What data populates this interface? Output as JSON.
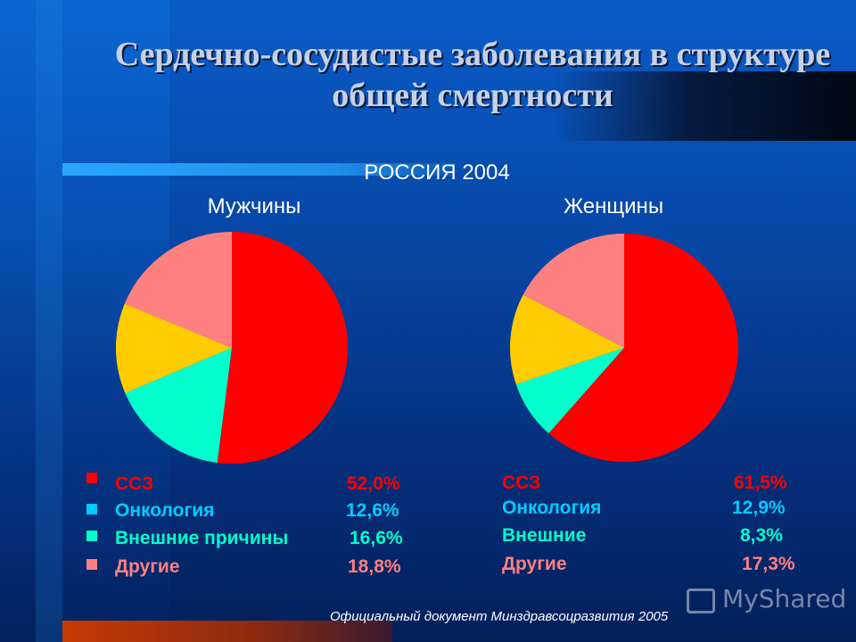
{
  "title": "Сердечно-сосудистые заболевания в структуре общей смертности",
  "subtitle": "РОССИЯ 2004",
  "footnote": "Официальный документ Минздравсоцразвития 2005",
  "watermark": "MyShared",
  "colors": {
    "ssz": "#ff0000",
    "oncology": "#00d0ff",
    "external": "#00ffcc",
    "other": "#ff8080",
    "male_external_slice": "#00ffcc",
    "male_oncology_slice": "#ffcc00",
    "female_oncology_slice": "#ffcc00"
  },
  "chart_data": [
    {
      "type": "pie",
      "title": "Мужчины",
      "categories": [
        "ССЗ",
        "Внешние причины",
        "Онкология",
        "Другие"
      ],
      "values": [
        52.0,
        16.6,
        12.6,
        18.8
      ],
      "colors": [
        "#ff0000",
        "#00ffcc",
        "#ffcc00",
        "#ff8080"
      ],
      "legend": [
        {
          "label": "ССЗ",
          "value": "52,0%",
          "color": "#ff0000"
        },
        {
          "label": "Онкология",
          "value": "12,6%",
          "color": "#00ccff"
        },
        {
          "label": "Внешние причины",
          "value": "16,6%",
          "color": "#00ffcc"
        },
        {
          "label": "Другие",
          "value": "18,8%",
          "color": "#ff8080"
        }
      ]
    },
    {
      "type": "pie",
      "title": "Женщины",
      "categories": [
        "ССЗ",
        "Внешние",
        "Онкология",
        "Другие"
      ],
      "values": [
        61.5,
        8.3,
        12.9,
        17.3
      ],
      "colors": [
        "#ff0000",
        "#00ffcc",
        "#ffcc00",
        "#ff8080"
      ],
      "legend": [
        {
          "label": "ССЗ",
          "value": "61,5%",
          "color": "#ff0000"
        },
        {
          "label": "Онкология",
          "value": "12,9%",
          "color": "#00ccff"
        },
        {
          "label": "Внешние",
          "value": "8,3%",
          "color": "#00ffcc"
        },
        {
          "label": "Другие",
          "value": "17,3%",
          "color": "#ff8080"
        }
      ]
    }
  ]
}
